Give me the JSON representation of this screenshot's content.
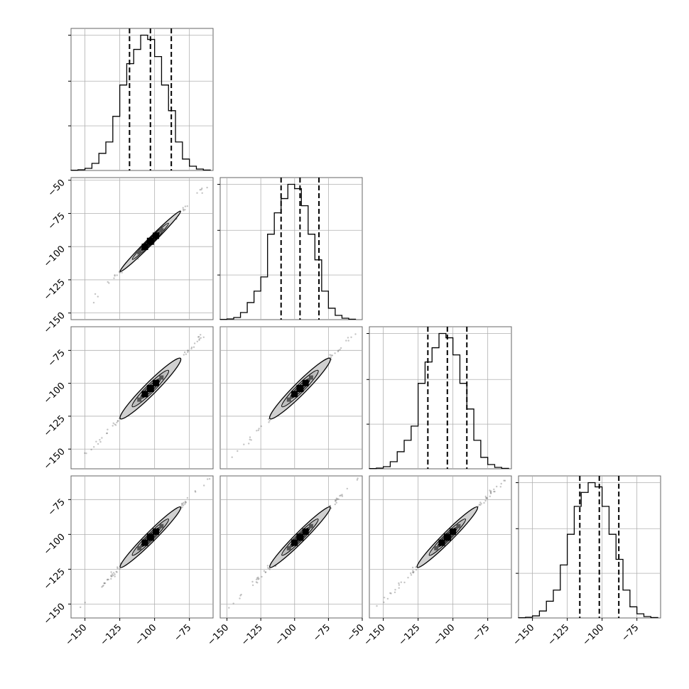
{
  "chart_data": {
    "type": "corner",
    "title": "",
    "dimensions": 4,
    "variable_labels": [
      "",
      "",
      "",
      ""
    ],
    "quantiles": [
      0.16,
      0.5,
      0.84
    ],
    "grid": true,
    "colors": {
      "line": "#000000",
      "grid": "#b0b0b0",
      "fill": "#d0d0d0"
    },
    "diagonal": [
      {
        "index": 0,
        "xlim": [
          -160,
          -58
        ],
        "quantile_lines": [
          -118,
          -103,
          -88
        ],
        "bins": [
          -160,
          -155,
          -150,
          -145,
          -140,
          -135,
          -130,
          -125,
          -120,
          -115,
          -110,
          -105,
          -100,
          -95,
          -90,
          -85,
          -80,
          -75,
          -70,
          -65,
          -60
        ],
        "counts": [
          0.002,
          0.005,
          0.015,
          0.05,
          0.12,
          0.2,
          0.38,
          0.6,
          0.75,
          0.85,
          0.95,
          0.92,
          0.8,
          0.6,
          0.42,
          0.2,
          0.08,
          0.03,
          0.01,
          0.003
        ],
        "y_ticks_normalized": [
          0.33,
          0.66,
          1.0
        ]
      },
      {
        "index": 1,
        "xlim": [
          -155,
          -50
        ],
        "quantile_lines": [
          -110,
          -96,
          -82
        ],
        "bins": [
          -155,
          -150,
          -145,
          -140,
          -135,
          -130,
          -125,
          -120,
          -115,
          -110,
          -105,
          -100,
          -95,
          -90,
          -85,
          -80,
          -75,
          -70,
          -65,
          -60,
          -55
        ],
        "counts": [
          0.002,
          0.005,
          0.015,
          0.05,
          0.12,
          0.2,
          0.3,
          0.6,
          0.75,
          0.85,
          0.95,
          0.92,
          0.8,
          0.6,
          0.42,
          0.2,
          0.08,
          0.03,
          0.01,
          0.003
        ],
        "y_ticks_normalized": [
          0.33,
          0.66,
          1.0
        ]
      },
      {
        "index": 2,
        "xlim": [
          -160,
          -58
        ],
        "quantile_lines": [
          -118,
          -104,
          -90
        ],
        "bins": [
          -160,
          -155,
          -150,
          -145,
          -140,
          -135,
          -130,
          -125,
          -120,
          -115,
          -110,
          -105,
          -100,
          -95,
          -90,
          -85,
          -80,
          -75,
          -70,
          -65,
          -60
        ],
        "counts": [
          0.002,
          0.005,
          0.015,
          0.05,
          0.12,
          0.2,
          0.3,
          0.6,
          0.75,
          0.85,
          0.95,
          0.92,
          0.8,
          0.6,
          0.42,
          0.2,
          0.08,
          0.03,
          0.01,
          0.003
        ],
        "y_ticks_normalized": [
          0.33,
          0.66,
          1.0
        ]
      },
      {
        "index": 3,
        "xlim": [
          -160,
          -58
        ],
        "quantile_lines": [
          -116,
          -102,
          -88
        ],
        "bins": [
          -160,
          -155,
          -150,
          -145,
          -140,
          -135,
          -130,
          -125,
          -120,
          -115,
          -110,
          -105,
          -100,
          -95,
          -90,
          -85,
          -80,
          -75,
          -70,
          -65,
          -60
        ],
        "counts": [
          0.002,
          0.005,
          0.015,
          0.05,
          0.12,
          0.2,
          0.38,
          0.6,
          0.8,
          0.9,
          0.97,
          0.94,
          0.8,
          0.6,
          0.42,
          0.2,
          0.08,
          0.03,
          0.01,
          0.003
        ],
        "y_ticks_normalized": [
          0.33,
          0.66,
          1.0
        ]
      }
    ],
    "off_diagonal": [
      {
        "row": 1,
        "col": 0,
        "xlim": [
          -160,
          -58
        ],
        "ylim": [
          -155,
          -48
        ],
        "center": [
          -103,
          -96
        ],
        "length": 60,
        "width": 6
      },
      {
        "row": 2,
        "col": 0,
        "xlim": [
          -160,
          -58
        ],
        "ylim": [
          -165,
          -57
        ],
        "center": [
          -103,
          -104
        ],
        "length": 60,
        "width": 14
      },
      {
        "row": 2,
        "col": 1,
        "xlim": [
          -155,
          -50
        ],
        "ylim": [
          -165,
          -57
        ],
        "center": [
          -96,
          -104
        ],
        "length": 60,
        "width": 14
      },
      {
        "row": 3,
        "col": 0,
        "xlim": [
          -160,
          -58
        ],
        "ylim": [
          -160,
          -58
        ],
        "center": [
          -103,
          -102
        ],
        "length": 60,
        "width": 11
      },
      {
        "row": 3,
        "col": 1,
        "xlim": [
          -155,
          -50
        ],
        "ylim": [
          -160,
          -58
        ],
        "center": [
          -96,
          -102
        ],
        "length": 60,
        "width": 11
      },
      {
        "row": 3,
        "col": 2,
        "xlim": [
          -160,
          -58
        ],
        "ylim": [
          -160,
          -58
        ],
        "center": [
          -104,
          -102
        ],
        "length": 60,
        "width": 11
      }
    ],
    "row_y_ticks": [
      [],
      [
        "−50",
        "−75",
        "−100",
        "−125",
        "−150"
      ],
      [
        "−75",
        "−100",
        "−125",
        "−150"
      ],
      [
        "−75",
        "−100",
        "−125",
        "−150"
      ]
    ],
    "row_y_tick_values": [
      [],
      [
        -50,
        -75,
        -100,
        -125,
        -150
      ],
      [
        -75,
        -100,
        -125,
        -150
      ],
      [
        -75,
        -100,
        -125,
        -150
      ]
    ],
    "col_x_ticks": [
      [
        "−150",
        "−125",
        "−100",
        "−75"
      ],
      [
        "−150",
        "−125",
        "−100",
        "−75",
        "−50"
      ],
      [
        "−150",
        "−125",
        "−100",
        "−75"
      ],
      [
        "−150",
        "−125",
        "−100",
        "−75"
      ]
    ],
    "col_x_tick_values": [
      [
        -150,
        -125,
        -100,
        -75
      ],
      [
        -150,
        -125,
        -100,
        -75,
        -50
      ],
      [
        -150,
        -125,
        -100,
        -75
      ],
      [
        -150,
        -125,
        -100,
        -75
      ]
    ]
  }
}
